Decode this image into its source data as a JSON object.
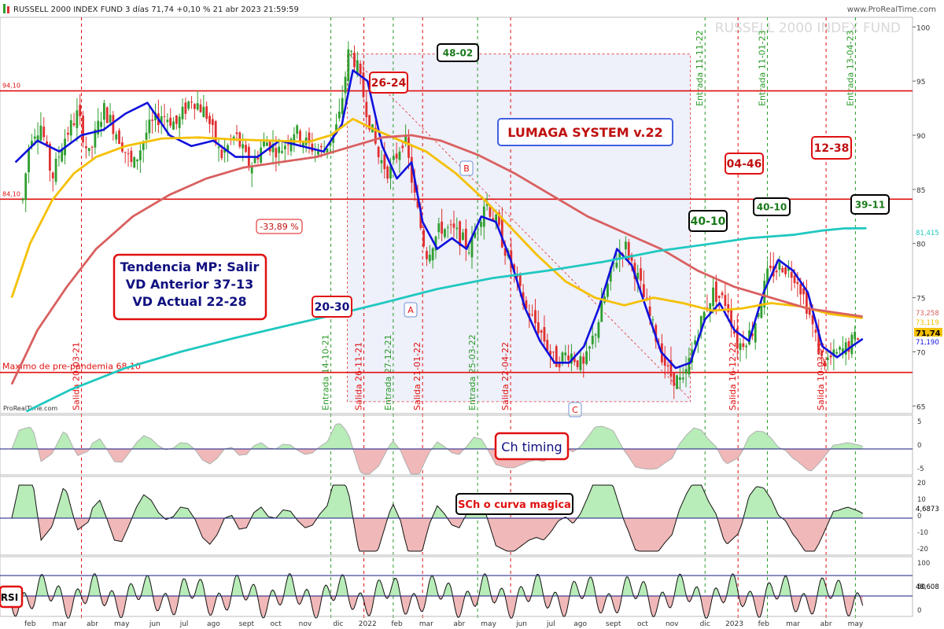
{
  "header": {
    "title": "RUSSELL 2000 INDEX FUND 3 días 71,74 +0,10 % 21 abr 2023 21:59:59",
    "brand": "www.ProRealTime.com",
    "watermark": "RUSSELL 2000 INDEX FUND",
    "footer_brand": "ProRealTime.com"
  },
  "colors": {
    "up": "#2e9e2e",
    "down": "#e03030",
    "blue": "#1010dd",
    "yellow": "#f5c000",
    "salmon": "#d96060",
    "teal": "#20c8c0",
    "grid_green": "#2a9a2a",
    "grid_red": "#e01010",
    "box_fill": "#eef0fa"
  },
  "chart_data": {
    "type": "candlestick",
    "x_labels": [
      "feb",
      "mar",
      "abr",
      "may",
      "jun",
      "jul",
      "ago",
      "sept",
      "oct",
      "nov",
      "dic",
      "2022",
      "feb",
      "mar",
      "abr",
      "may",
      "jun",
      "jul",
      "ago",
      "sept",
      "oct",
      "nov",
      "dic",
      "2023",
      "feb",
      "mar",
      "abr",
      "may"
    ],
    "y_ticks": [
      100,
      95,
      90,
      85,
      80,
      75,
      70,
      65
    ],
    "ylim": [
      64.3,
      100.6
    ],
    "price_path": [
      [
        2021.02,
        84.0
      ],
      [
        2021.04,
        90.0
      ],
      [
        2021.07,
        91.0
      ],
      [
        2021.1,
        86.0
      ],
      [
        2021.13,
        89.5
      ],
      [
        2021.17,
        92.0
      ],
      [
        2021.2,
        88.0
      ],
      [
        2021.24,
        92.5
      ],
      [
        2021.28,
        90.0
      ],
      [
        2021.32,
        87.0
      ],
      [
        2021.36,
        90.5
      ],
      [
        2021.4,
        92.0
      ],
      [
        2021.44,
        91.0
      ],
      [
        2021.48,
        93.5
      ],
      [
        2021.52,
        92.0
      ],
      [
        2021.56,
        88.0
      ],
      [
        2021.6,
        90.0
      ],
      [
        2021.64,
        87.0
      ],
      [
        2021.68,
        89.5
      ],
      [
        2021.72,
        88.5
      ],
      [
        2021.76,
        90.5
      ],
      [
        2021.8,
        89.0
      ],
      [
        2021.84,
        88.5
      ],
      [
        2021.88,
        91.0
      ],
      [
        2021.91,
        98.0
      ],
      [
        2021.93,
        96.5
      ],
      [
        2021.96,
        92.0
      ],
      [
        2021.99,
        88.0
      ],
      [
        2022.02,
        86.5
      ],
      [
        2022.06,
        90.0
      ],
      [
        2022.09,
        84.0
      ],
      [
        2022.12,
        79.0
      ],
      [
        2022.16,
        81.5
      ],
      [
        2022.2,
        81.0
      ],
      [
        2022.24,
        79.5
      ],
      [
        2022.28,
        84.0
      ],
      [
        2022.31,
        82.0
      ],
      [
        2022.35,
        78.0
      ],
      [
        2022.39,
        74.0
      ],
      [
        2022.43,
        72.0
      ],
      [
        2022.47,
        69.0
      ],
      [
        2022.51,
        70.0
      ],
      [
        2022.55,
        68.5
      ],
      [
        2022.59,
        73.0
      ],
      [
        2022.63,
        78.0
      ],
      [
        2022.66,
        80.0
      ],
      [
        2022.7,
        76.5
      ],
      [
        2022.74,
        72.0
      ],
      [
        2022.78,
        68.0
      ],
      [
        2022.82,
        67.0
      ],
      [
        2022.86,
        72.0
      ],
      [
        2022.9,
        75.5
      ],
      [
        2022.94,
        74.5
      ],
      [
        2022.97,
        70.5
      ],
      [
        2023.01,
        72.0
      ],
      [
        2023.05,
        77.0
      ],
      [
        2023.09,
        78.0
      ],
      [
        2023.13,
        77.0
      ],
      [
        2023.16,
        74.0
      ],
      [
        2023.2,
        69.0
      ],
      [
        2023.23,
        69.5
      ],
      [
        2023.27,
        70.5
      ],
      [
        2023.3,
        71.74
      ]
    ],
    "moving_averages": [
      {
        "name": "",
        "color": "#1010dd",
        "points": [
          [
            2021.0,
            87.5
          ],
          [
            2021.06,
            89.5
          ],
          [
            2021.12,
            88.5
          ],
          [
            2021.18,
            90.0
          ],
          [
            2021.24,
            90.5
          ],
          [
            2021.3,
            92.0
          ],
          [
            2021.36,
            93.0
          ],
          [
            2021.42,
            90.0
          ],
          [
            2021.48,
            89.0
          ],
          [
            2021.54,
            89.5
          ],
          [
            2021.6,
            88.0
          ],
          [
            2021.66,
            88.0
          ],
          [
            2021.72,
            89.5
          ],
          [
            2021.78,
            89.0
          ],
          [
            2021.84,
            88.5
          ],
          [
            2021.89,
            91.0
          ],
          [
            2021.92,
            96.0
          ],
          [
            2021.96,
            95.0
          ],
          [
            2022.0,
            89.0
          ],
          [
            2022.04,
            86.0
          ],
          [
            2022.08,
            87.5
          ],
          [
            2022.11,
            82.0
          ],
          [
            2022.15,
            79.5
          ],
          [
            2022.19,
            80.5
          ],
          [
            2022.23,
            79.5
          ],
          [
            2022.27,
            82.5
          ],
          [
            2022.31,
            82.0
          ],
          [
            2022.35,
            78.5
          ],
          [
            2022.39,
            74.0
          ],
          [
            2022.43,
            71.0
          ],
          [
            2022.47,
            69.0
          ],
          [
            2022.51,
            69.0
          ],
          [
            2022.55,
            70.5
          ],
          [
            2022.59,
            74.0
          ],
          [
            2022.64,
            79.5
          ],
          [
            2022.68,
            78.0
          ],
          [
            2022.72,
            74.0
          ],
          [
            2022.76,
            70.0
          ],
          [
            2022.8,
            68.5
          ],
          [
            2022.84,
            69.0
          ],
          [
            2022.88,
            73.0
          ],
          [
            2022.92,
            74.5
          ],
          [
            2022.96,
            72.0
          ],
          [
            2023.0,
            71.0
          ],
          [
            2023.04,
            75.5
          ],
          [
            2023.08,
            78.5
          ],
          [
            2023.12,
            77.5
          ],
          [
            2023.16,
            75.5
          ],
          [
            2023.2,
            70.5
          ],
          [
            2023.24,
            69.5
          ],
          [
            2023.28,
            70.5
          ],
          [
            2023.31,
            71.2
          ]
        ]
      },
      {
        "name": "",
        "color": "#f5c000",
        "points": [
          [
            2020.99,
            75.0
          ],
          [
            2021.04,
            80.0
          ],
          [
            2021.1,
            84.0
          ],
          [
            2021.16,
            86.5
          ],
          [
            2021.22,
            88.0
          ],
          [
            2021.3,
            89.0
          ],
          [
            2021.4,
            89.7
          ],
          [
            2021.5,
            89.8
          ],
          [
            2021.6,
            89.6
          ],
          [
            2021.7,
            89.5
          ],
          [
            2021.8,
            89.4
          ],
          [
            2021.86,
            90.0
          ],
          [
            2021.92,
            91.5
          ],
          [
            2021.98,
            90.5
          ],
          [
            2022.05,
            89.5
          ],
          [
            2022.12,
            88.5
          ],
          [
            2022.2,
            86.5
          ],
          [
            2022.28,
            84.0
          ],
          [
            2022.35,
            81.5
          ],
          [
            2022.42,
            79.0
          ],
          [
            2022.5,
            76.5
          ],
          [
            2022.58,
            75.0
          ],
          [
            2022.66,
            74.3
          ],
          [
            2022.74,
            75.0
          ],
          [
            2022.82,
            74.5
          ],
          [
            2022.9,
            73.8
          ],
          [
            2022.98,
            74.0
          ],
          [
            2023.06,
            74.5
          ],
          [
            2023.14,
            74.2
          ],
          [
            2023.22,
            73.5
          ],
          [
            2023.31,
            73.119
          ]
        ]
      },
      {
        "name": "",
        "color": "#d96060",
        "points": [
          [
            2020.99,
            67.0
          ],
          [
            2021.06,
            72.0
          ],
          [
            2021.14,
            76.0
          ],
          [
            2021.22,
            79.5
          ],
          [
            2021.32,
            82.5
          ],
          [
            2021.42,
            84.5
          ],
          [
            2021.52,
            86.0
          ],
          [
            2021.62,
            87.0
          ],
          [
            2021.72,
            87.5
          ],
          [
            2021.82,
            88.0
          ],
          [
            2021.92,
            89.0
          ],
          [
            2022.0,
            89.8
          ],
          [
            2022.08,
            90.0
          ],
          [
            2022.16,
            89.5
          ],
          [
            2022.26,
            88.2
          ],
          [
            2022.36,
            86.5
          ],
          [
            2022.46,
            84.5
          ],
          [
            2022.56,
            82.5
          ],
          [
            2022.66,
            81.0
          ],
          [
            2022.76,
            79.5
          ],
          [
            2022.86,
            77.5
          ],
          [
            2022.96,
            76.0
          ],
          [
            2023.06,
            75.0
          ],
          [
            2023.16,
            74.0
          ],
          [
            2023.24,
            73.6
          ],
          [
            2023.31,
            73.258
          ]
        ]
      },
      {
        "name": "",
        "color": "#20c8c0",
        "points": [
          [
            2021.03,
            64.5
          ],
          [
            2021.15,
            66.5
          ],
          [
            2021.3,
            68.5
          ],
          [
            2021.45,
            70.0
          ],
          [
            2021.6,
            71.3
          ],
          [
            2021.75,
            72.5
          ],
          [
            2021.88,
            73.5
          ],
          [
            2022.0,
            74.5
          ],
          [
            2022.15,
            75.8
          ],
          [
            2022.3,
            76.8
          ],
          [
            2022.45,
            77.5
          ],
          [
            2022.6,
            78.3
          ],
          [
            2022.75,
            79.3
          ],
          [
            2022.9,
            80.0
          ],
          [
            2023.0,
            80.5
          ],
          [
            2023.12,
            80.8
          ],
          [
            2023.2,
            81.2
          ],
          [
            2023.26,
            81.4
          ],
          [
            2023.32,
            81.415
          ]
        ]
      }
    ],
    "hlines": [
      {
        "y": 94.1,
        "label": "94,10"
      },
      {
        "y": 84.1,
        "label": "84,10"
      },
      {
        "y": 68.1,
        "label": "Maximo de pre-pandemia 68,10"
      }
    ],
    "vlines": [
      {
        "x": 2021.18,
        "label": "Salida 20-03-21",
        "color": "red"
      },
      {
        "x": 2021.86,
        "label": "Entrada 14-10-21",
        "color": "green"
      },
      {
        "x": 2021.95,
        "label": "Salida 26-11-21",
        "color": "red"
      },
      {
        "x": 2022.03,
        "label": "Entrada 27-12-21",
        "color": "green"
      },
      {
        "x": 2022.11,
        "label": "Salida 21-01-22",
        "color": "red"
      },
      {
        "x": 2022.26,
        "label": "Entrada 25-03-22",
        "color": "green"
      },
      {
        "x": 2022.35,
        "label": "Salida 22-04-22",
        "color": "red"
      },
      {
        "x": 2022.88,
        "label": "Entrada 11-11-22",
        "color": "green"
      },
      {
        "x": 2022.97,
        "label": "Salida 16-12-22",
        "color": "red"
      },
      {
        "x": 2023.05,
        "label": "Entrada 11-01-23",
        "color": "green"
      },
      {
        "x": 2023.21,
        "label": "Salida 10-03-23",
        "color": "red"
      },
      {
        "x": 2023.29,
        "label": "Entrada 13-04-23",
        "color": "green"
      }
    ],
    "right_values": [
      {
        "y": 81.415,
        "text": "81,415",
        "color": "#20c8c0"
      },
      {
        "y": 73.258,
        "text": "73,258",
        "color": "#d96060"
      },
      {
        "y": 73.119,
        "text": "73,119",
        "color": "#f5c000"
      },
      {
        "y": 71.74,
        "text": "71,74",
        "color": "#f5c000"
      },
      {
        "y": 71.19,
        "text": "71,190",
        "color": "#1010dd"
      }
    ],
    "boxes": [
      {
        "text": "26-24",
        "color": "red"
      },
      {
        "text": "48-02",
        "color": "green"
      },
      {
        "text": "LUMAGA SYSTEM v.22",
        "color": "red"
      },
      {
        "text": "04-46",
        "color": "red"
      },
      {
        "text": "12-38",
        "color": "red"
      },
      {
        "text": "40-10",
        "color": "green"
      },
      {
        "text": "40-10",
        "color": "green"
      },
      {
        "text": "39-11",
        "color": "green"
      },
      {
        "text": "20-30",
        "color": "blue"
      },
      {
        "text": "-33,89 %",
        "color": "red"
      }
    ],
    "trend_box": [
      "Tendencia MP: Salir",
      "VD Anterior 37-13",
      "VD Actual 22-28"
    ],
    "points_abc": [
      "A",
      "B",
      "C"
    ],
    "panels": [
      {
        "name": "Ch timing",
        "ticks": [
          "5",
          "0",
          "-5"
        ],
        "zero_label": "",
        "value": ""
      },
      {
        "name": "SCh o curva magica",
        "ticks": [
          "20",
          "10",
          "0",
          "-10",
          "-20"
        ],
        "value": "4,6873"
      },
      {
        "name": "RSI",
        "ticks": [
          "100",
          "50",
          "0"
        ],
        "value": "48,608"
      }
    ]
  }
}
